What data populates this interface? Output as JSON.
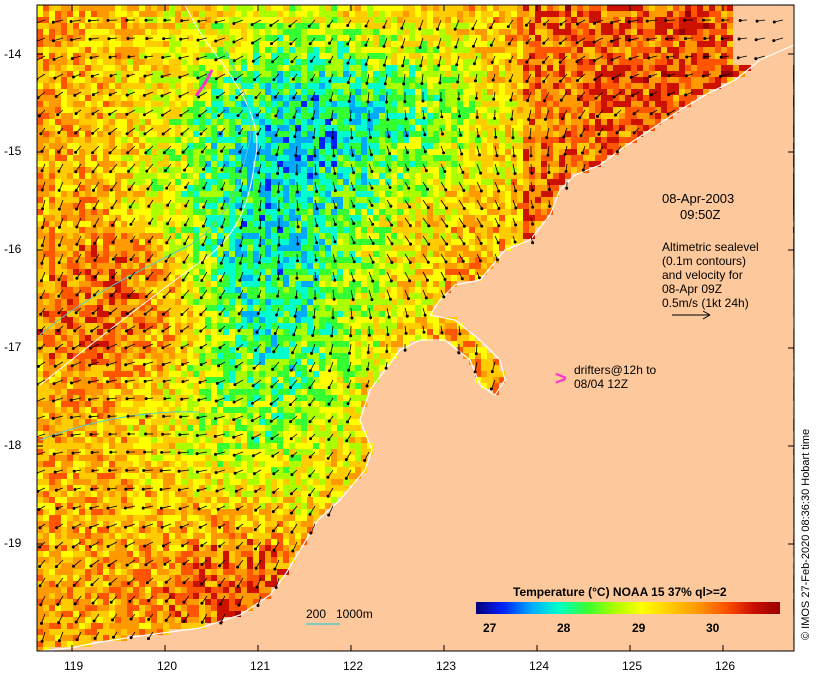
{
  "map": {
    "date": "08-Apr-2003",
    "time": "09:50Z",
    "altimetry_lines": [
      "Altimetric sealevel",
      "(0.1m contours)",
      "and velocity for",
      "08-Apr 09Z",
      "0.5m/s (1kt 24h)"
    ],
    "drifter_symbol": ">",
    "drifters_lines": [
      "drifters@12h to",
      "08/04 12Z"
    ],
    "depth_legend": [
      "200",
      "1000m"
    ],
    "credit": "© IMOS 27-Feb-2020 08:36:30 Hobart time",
    "lon_ticks": [
      "119",
      "120",
      "121",
      "122",
      "123",
      "124",
      "125",
      "126"
    ],
    "lat_ticks": [
      "-14",
      "-15",
      "-16",
      "-17",
      "-18",
      "-19"
    ],
    "colorbar": {
      "title": "Temperature (°C) NOAA 15 37% ql>=2",
      "ticks": [
        "27",
        "28",
        "29",
        "30"
      ],
      "colors": [
        "#00007a",
        "#0022ff",
        "#00aaff",
        "#00ffcc",
        "#33ff33",
        "#aaff00",
        "#ffff00",
        "#ffcc00",
        "#ff9900",
        "#ff5500",
        "#cc1100",
        "#990000"
      ]
    },
    "colors": {
      "land": "#fdc99c",
      "coast": "#ffffff",
      "drifter": "#ff33cc",
      "isobath_200": "#55cccc",
      "isobath_1000": "#ffffff"
    }
  }
}
